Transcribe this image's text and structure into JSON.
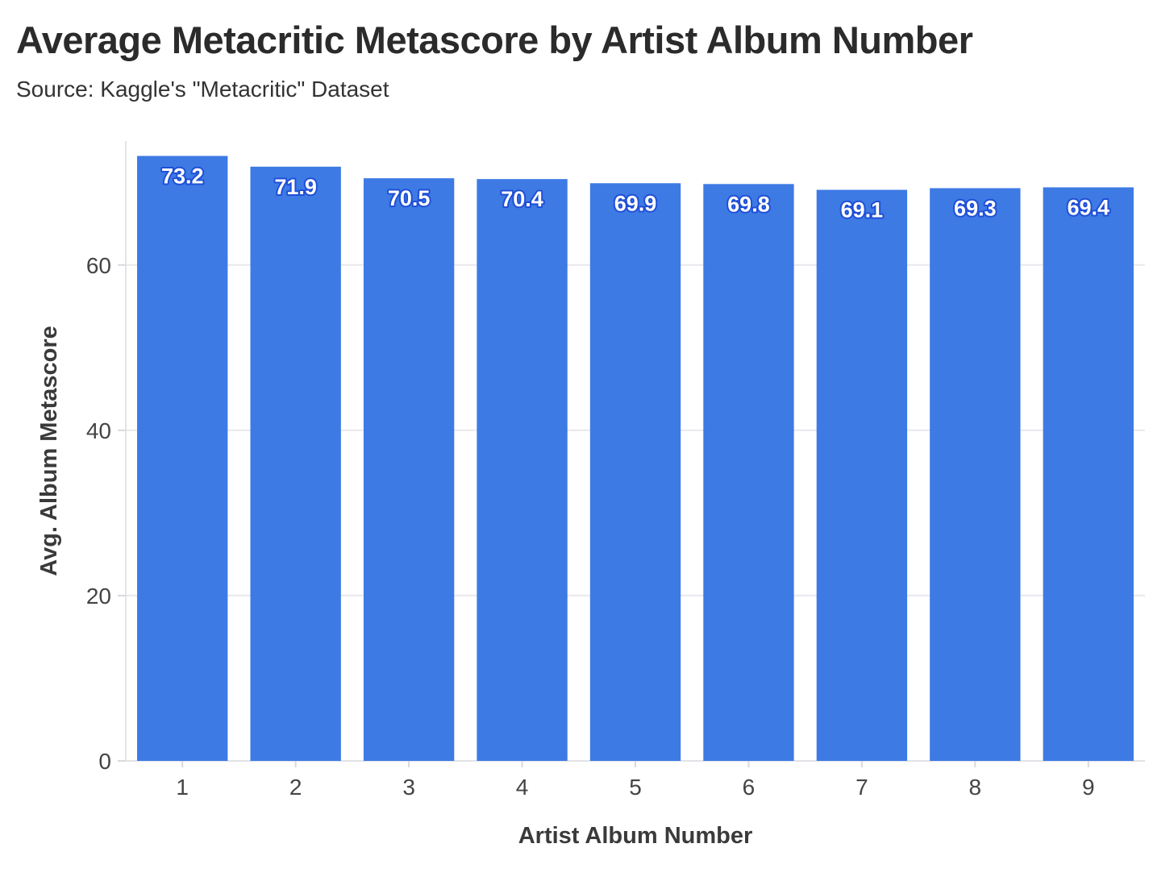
{
  "header": {
    "title": "Average Metacritic Metascore by Artist Album Number",
    "subtitle": "Source: Kaggle's \"Metacritic\" Dataset"
  },
  "chart_data": {
    "type": "bar",
    "title": "Average Metacritic Metascore by Artist Album Number",
    "subtitle": "Source: Kaggle's \"Metacritic\" Dataset",
    "xlabel": "Artist Album Number",
    "ylabel": "Avg. Album Metascore",
    "categories": [
      "1",
      "2",
      "3",
      "4",
      "5",
      "6",
      "7",
      "8",
      "9"
    ],
    "values": [
      73.2,
      71.9,
      70.5,
      70.4,
      69.9,
      69.8,
      69.1,
      69.3,
      69.4
    ],
    "data_labels": [
      "73.2",
      "71.9",
      "70.5",
      "70.4",
      "69.9",
      "69.8",
      "69.1",
      "69.3",
      "69.4"
    ],
    "ylim": [
      0,
      75
    ],
    "yticks": [
      0,
      20,
      40,
      60
    ],
    "ytick_labels": [
      "0",
      "20",
      "40",
      "60"
    ],
    "grid": true,
    "legend": "none",
    "colors": {
      "bar": "#3d7ae4",
      "label_outline": "#1f4fd6",
      "grid": "#e8e8ee"
    }
  }
}
